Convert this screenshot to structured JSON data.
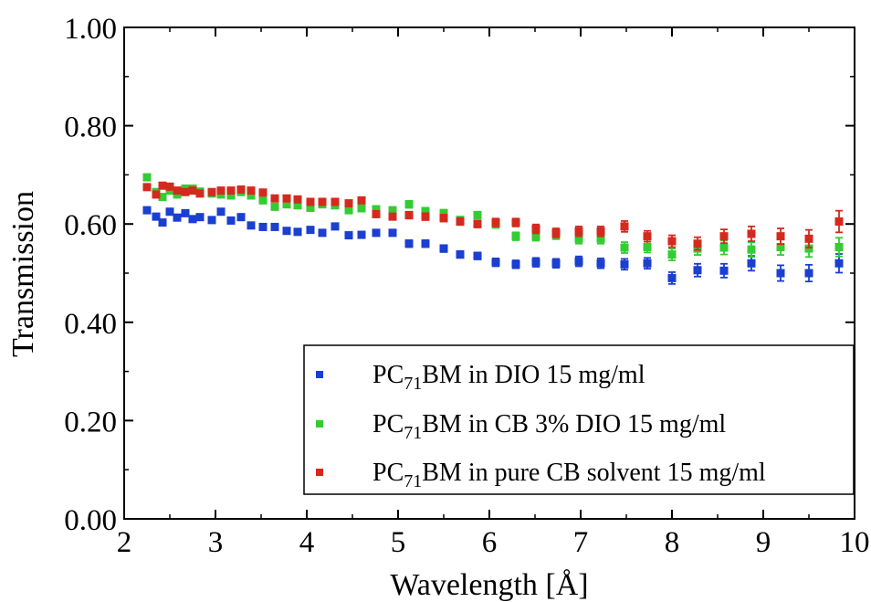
{
  "chart_data": {
    "type": "scatter",
    "title": "",
    "xlabel": "Wavelength [Å]",
    "ylabel": "Transmission",
    "xlim": [
      2,
      10
    ],
    "ylim": [
      0,
      1
    ],
    "x_ticks": [
      2,
      3,
      4,
      5,
      6,
      7,
      8,
      9,
      10
    ],
    "x_tick_labels": [
      "2",
      "3",
      "4",
      "5",
      "6",
      "7",
      "8",
      "9",
      "10"
    ],
    "y_ticks": [
      0,
      0.2,
      0.4,
      0.6,
      0.8,
      1.0
    ],
    "y_tick_labels": [
      "0.00",
      "0.20",
      "0.40",
      "0.60",
      "0.80",
      "1.00"
    ],
    "grid": false,
    "legend_position": "bottom-right",
    "series": [
      {
        "name": "PC71BM in DIO 15 mg/ml",
        "legend": {
          "pre": "PC",
          "sub": "71",
          "post": "BM in DIO 15 mg/ml"
        },
        "color": "#1a3fd1",
        "x": [
          2.25,
          2.35,
          2.42,
          2.5,
          2.58,
          2.67,
          2.75,
          2.83,
          2.96,
          3.06,
          3.17,
          3.28,
          3.39,
          3.52,
          3.65,
          3.78,
          3.9,
          4.04,
          4.17,
          4.31,
          4.46,
          4.6,
          4.76,
          4.94,
          5.12,
          5.3,
          5.5,
          5.68,
          5.87,
          6.07,
          6.29,
          6.51,
          6.73,
          6.98,
          7.22,
          7.48,
          7.73,
          8.0,
          8.28,
          8.57,
          8.87,
          9.19,
          9.5,
          9.83
        ],
        "y": [
          0.628,
          0.615,
          0.603,
          0.625,
          0.613,
          0.622,
          0.61,
          0.614,
          0.608,
          0.625,
          0.607,
          0.614,
          0.597,
          0.594,
          0.594,
          0.586,
          0.584,
          0.588,
          0.582,
          0.595,
          0.577,
          0.578,
          0.582,
          0.582,
          0.56,
          0.56,
          0.55,
          0.538,
          0.535,
          0.522,
          0.518,
          0.522,
          0.52,
          0.524,
          0.52,
          0.518,
          0.52,
          0.49,
          0.506,
          0.505,
          0.52,
          0.5,
          0.5,
          0.52
        ],
        "err": [
          0.006,
          0.006,
          0.006,
          0.006,
          0.006,
          0.006,
          0.006,
          0.006,
          0.006,
          0.006,
          0.006,
          0.006,
          0.006,
          0.006,
          0.006,
          0.006,
          0.006,
          0.006,
          0.006,
          0.006,
          0.006,
          0.006,
          0.006,
          0.006,
          0.007,
          0.007,
          0.007,
          0.007,
          0.007,
          0.008,
          0.008,
          0.009,
          0.009,
          0.01,
          0.01,
          0.011,
          0.011,
          0.012,
          0.013,
          0.014,
          0.015,
          0.016,
          0.017,
          0.019
        ]
      },
      {
        "name": "PC71BM in CB 3% DIO 15 mg/ml",
        "legend": {
          "pre": "PC",
          "sub": "71",
          "post": "BM in CB 3% DIO 15 mg/ml"
        },
        "color": "#33cc33",
        "x": [
          2.25,
          2.35,
          2.42,
          2.5,
          2.58,
          2.67,
          2.75,
          2.83,
          2.96,
          3.06,
          3.17,
          3.28,
          3.39,
          3.52,
          3.65,
          3.78,
          3.9,
          4.04,
          4.17,
          4.31,
          4.46,
          4.6,
          4.76,
          4.94,
          5.12,
          5.3,
          5.5,
          5.68,
          5.87,
          6.07,
          6.29,
          6.51,
          6.73,
          6.98,
          7.22,
          7.48,
          7.73,
          8.0,
          8.28,
          8.57,
          8.87,
          9.19,
          9.5,
          9.83
        ],
        "y": [
          0.695,
          0.665,
          0.655,
          0.668,
          0.66,
          0.672,
          0.672,
          0.666,
          0.662,
          0.66,
          0.658,
          0.665,
          0.658,
          0.648,
          0.635,
          0.64,
          0.638,
          0.633,
          0.64,
          0.638,
          0.628,
          0.632,
          0.63,
          0.628,
          0.64,
          0.626,
          0.622,
          0.608,
          0.618,
          0.6,
          0.575,
          0.575,
          0.578,
          0.57,
          0.57,
          0.552,
          0.553,
          0.538,
          0.55,
          0.552,
          0.548,
          0.553,
          0.55,
          0.553
        ],
        "err": [
          0.006,
          0.006,
          0.006,
          0.006,
          0.006,
          0.006,
          0.006,
          0.006,
          0.006,
          0.006,
          0.006,
          0.006,
          0.006,
          0.006,
          0.006,
          0.006,
          0.006,
          0.006,
          0.006,
          0.006,
          0.006,
          0.006,
          0.006,
          0.006,
          0.007,
          0.007,
          0.007,
          0.007,
          0.007,
          0.008,
          0.008,
          0.009,
          0.009,
          0.01,
          0.01,
          0.011,
          0.011,
          0.012,
          0.013,
          0.014,
          0.015,
          0.016,
          0.017,
          0.019
        ]
      },
      {
        "name": "PC71BM in pure CB solvent 15 mg/ml",
        "legend": {
          "pre": "PC",
          "sub": "71",
          "post": "BM in pure CB solvent 15 mg/ml"
        },
        "color": "#d42a1e",
        "x": [
          2.25,
          2.35,
          2.42,
          2.5,
          2.58,
          2.67,
          2.75,
          2.83,
          2.96,
          3.06,
          3.17,
          3.28,
          3.39,
          3.52,
          3.65,
          3.78,
          3.9,
          4.04,
          4.17,
          4.31,
          4.46,
          4.6,
          4.76,
          4.94,
          5.12,
          5.3,
          5.5,
          5.68,
          5.87,
          6.07,
          6.29,
          6.51,
          6.73,
          6.98,
          7.22,
          7.48,
          7.73,
          8.0,
          8.28,
          8.57,
          8.87,
          9.19,
          9.5,
          9.83
        ],
        "y": [
          0.675,
          0.66,
          0.678,
          0.676,
          0.668,
          0.665,
          0.668,
          0.662,
          0.665,
          0.668,
          0.668,
          0.67,
          0.668,
          0.664,
          0.652,
          0.652,
          0.65,
          0.645,
          0.645,
          0.645,
          0.642,
          0.648,
          0.62,
          0.615,
          0.618,
          0.615,
          0.612,
          0.605,
          0.6,
          0.603,
          0.603,
          0.59,
          0.582,
          0.585,
          0.585,
          0.595,
          0.575,
          0.565,
          0.56,
          0.575,
          0.58,
          0.575,
          0.57,
          0.605
        ],
        "err": [
          0.006,
          0.006,
          0.006,
          0.006,
          0.006,
          0.006,
          0.006,
          0.006,
          0.006,
          0.006,
          0.006,
          0.006,
          0.006,
          0.006,
          0.006,
          0.006,
          0.006,
          0.006,
          0.006,
          0.006,
          0.006,
          0.006,
          0.006,
          0.006,
          0.007,
          0.007,
          0.007,
          0.007,
          0.007,
          0.008,
          0.008,
          0.009,
          0.009,
          0.01,
          0.01,
          0.011,
          0.011,
          0.012,
          0.013,
          0.014,
          0.015,
          0.016,
          0.018,
          0.022
        ]
      }
    ]
  }
}
